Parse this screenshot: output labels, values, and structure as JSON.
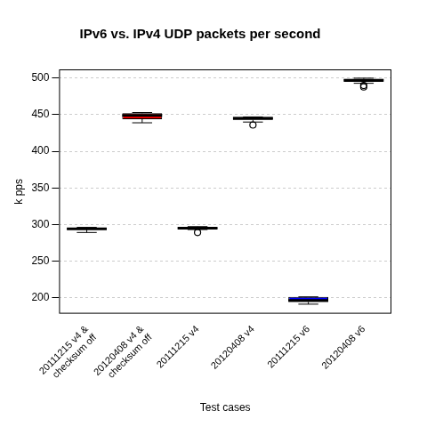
{
  "chart_data": {
    "type": "box",
    "title": "IPv6 vs. IPv4 UDP packets per second",
    "x_label": "Test cases",
    "y_label": "k pps",
    "categories": [
      [
        "20111215 v4 &",
        "checksum off"
      ],
      [
        "20120408 v4 &",
        "checksum off"
      ],
      "20111215 v4",
      "20120408 v4",
      "20111215 v6",
      "20120408 v6"
    ],
    "boxes": [
      {
        "min": 289,
        "q1": 293,
        "median": 294,
        "q3": 295,
        "max": 296,
        "outliers": []
      },
      {
        "min": 439,
        "q1": 444,
        "median": 449,
        "q3": 452,
        "max": 453,
        "outliers": []
      },
      {
        "min": 293,
        "q1": 294,
        "median": 295,
        "q3": 296,
        "max": 297,
        "outliers": [
          289
        ]
      },
      {
        "min": 440,
        "q1": 443,
        "median": 445,
        "q3": 447,
        "max": 447,
        "outliers": [
          436
        ]
      },
      {
        "min": 191,
        "q1": 194,
        "median": 196,
        "q3": 201,
        "max": 201,
        "outliers": []
      },
      {
        "min": 493,
        "q1": 495,
        "median": 497,
        "q3": 499,
        "max": 500,
        "outliers": [
          488,
          490
        ]
      }
    ],
    "colors": [
      "#000000",
      "#ff0000",
      "#0000ff",
      "#ff0000",
      "#0000ff",
      "#00cc00"
    ],
    "ylim": [
      178,
      512
    ],
    "yticks": [
      200,
      250,
      300,
      350,
      400,
      450,
      500
    ],
    "grid": true
  }
}
